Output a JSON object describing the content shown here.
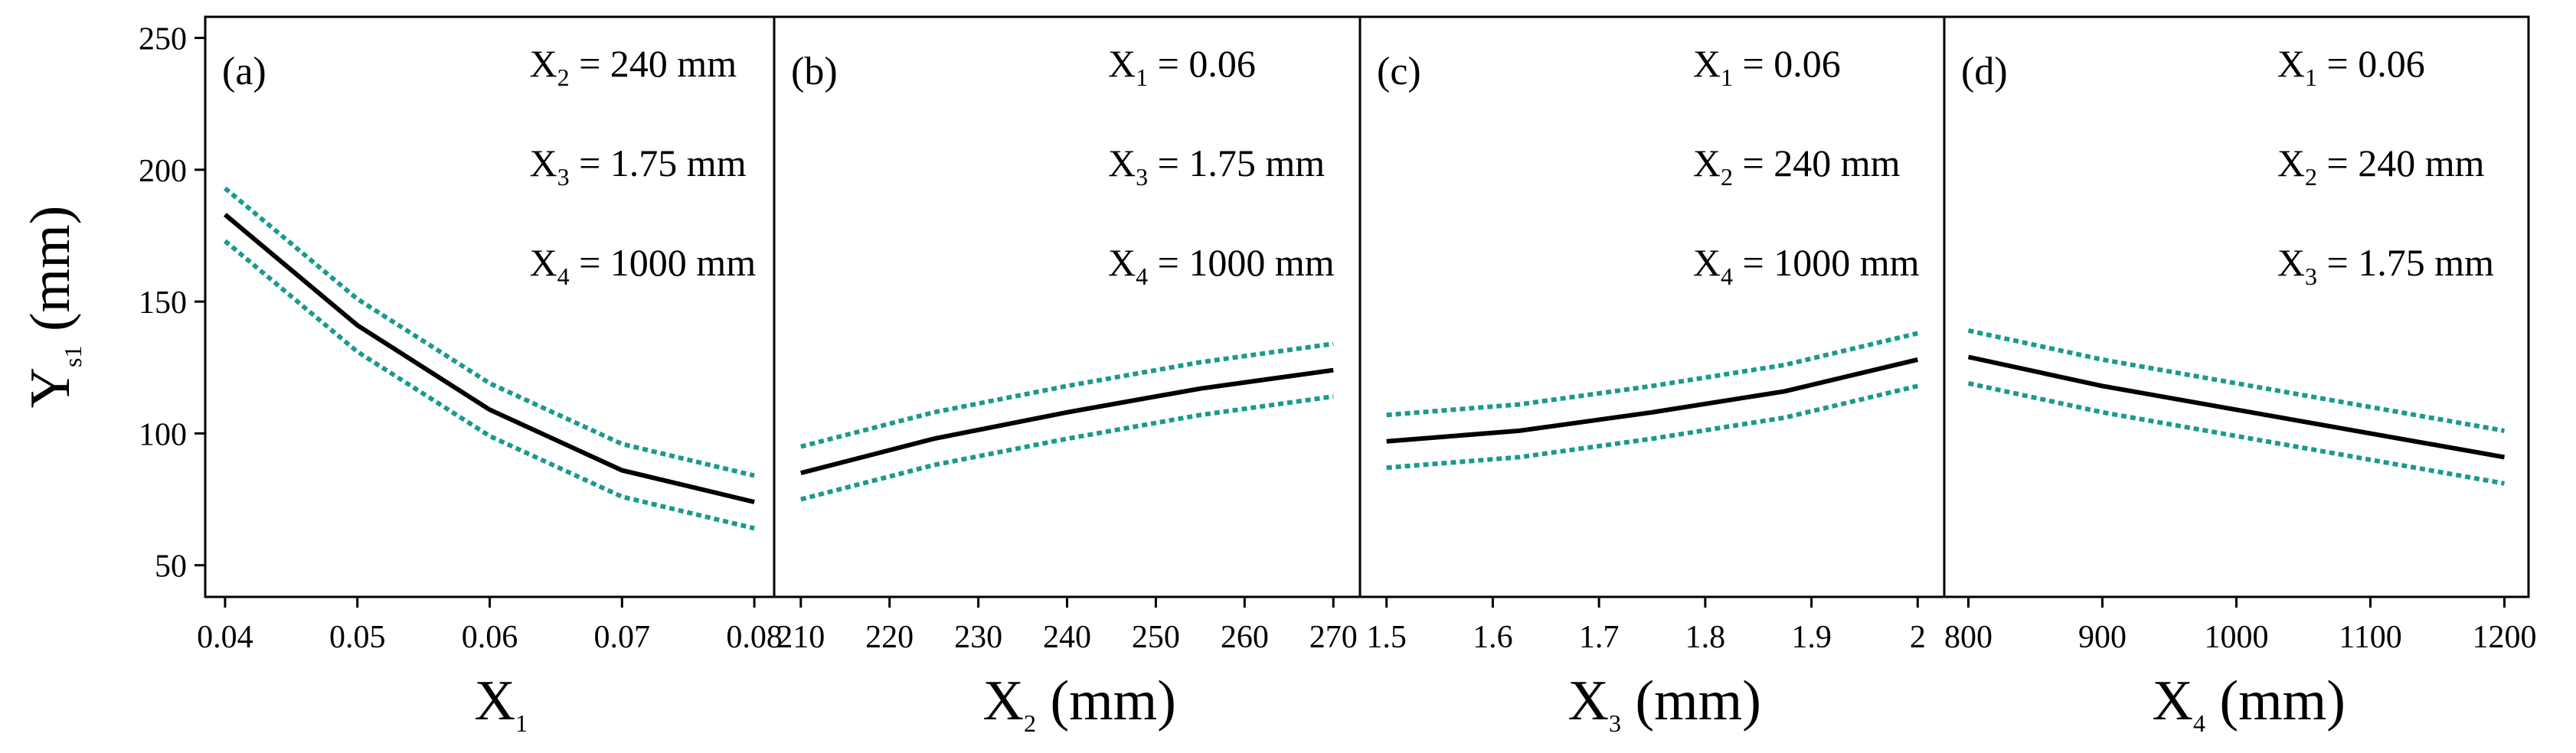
{
  "chart_data": [
    {
      "type": "line",
      "panel": "(a)",
      "xlabel": "X1",
      "x_var": "X",
      "x_sub": "1",
      "x_unit": "",
      "ylabel": "Ys1 (mm)",
      "y_var": "Y",
      "y_sub": "s1",
      "y_unit": " (mm)",
      "xlim": [
        0.0385,
        0.0815
      ],
      "ylim": [
        38,
        258
      ],
      "xticks": [
        0.04,
        0.05,
        0.06,
        0.07,
        0.08
      ],
      "xtick_labels": [
        "0.04",
        "0.05",
        "0.06",
        "0.07",
        "0.08"
      ],
      "yticks": [
        50,
        100,
        150,
        200,
        250
      ],
      "ytick_labels": [
        "50",
        "100",
        "150",
        "200",
        "250"
      ],
      "fixed": [
        {
          "var": "X",
          "sub": "2",
          "text": " = 240 mm"
        },
        {
          "var": "X",
          "sub": "3",
          "text": " = 1.75 mm"
        },
        {
          "var": "X",
          "sub": "4",
          "text": " = 1000 mm"
        }
      ],
      "series": [
        {
          "name": "lower",
          "style": "dotted",
          "x": [
            0.04,
            0.05,
            0.06,
            0.07,
            0.08
          ],
          "y": [
            173,
            131,
            99,
            76,
            64
          ]
        },
        {
          "name": "mean",
          "style": "solid",
          "x": [
            0.04,
            0.05,
            0.06,
            0.07,
            0.08
          ],
          "y": [
            183,
            141,
            109,
            86,
            74
          ]
        },
        {
          "name": "upper",
          "style": "dotted",
          "x": [
            0.04,
            0.05,
            0.06,
            0.07,
            0.08
          ],
          "y": [
            193,
            151,
            119,
            96,
            84
          ]
        }
      ]
    },
    {
      "type": "line",
      "panel": "(b)",
      "xlabel": "X2 (mm)",
      "x_var": "X",
      "x_sub": "2",
      "x_unit": " (mm)",
      "xlim": [
        207,
        273
      ],
      "ylim": [
        38,
        258
      ],
      "xticks": [
        210,
        220,
        230,
        240,
        250,
        260,
        270
      ],
      "xtick_labels": [
        "210",
        "220",
        "230",
        "240",
        "250",
        "260",
        "270"
      ],
      "fixed": [
        {
          "var": "X",
          "sub": "1",
          "text": " = 0.06"
        },
        {
          "var": "X",
          "sub": "3",
          "text": " = 1.75 mm"
        },
        {
          "var": "X",
          "sub": "4",
          "text": " = 1000 mm"
        }
      ],
      "series": [
        {
          "name": "lower",
          "style": "dotted",
          "x": [
            210,
            225,
            240,
            255,
            270
          ],
          "y": [
            75,
            88,
            98,
            107,
            114
          ]
        },
        {
          "name": "mean",
          "style": "solid",
          "x": [
            210,
            225,
            240,
            255,
            270
          ],
          "y": [
            85,
            98,
            108,
            117,
            124
          ]
        },
        {
          "name": "upper",
          "style": "dotted",
          "x": [
            210,
            225,
            240,
            255,
            270
          ],
          "y": [
            95,
            108,
            118,
            127,
            134
          ]
        }
      ]
    },
    {
      "type": "line",
      "panel": "(c)",
      "xlabel": "X3 (mm)",
      "x_var": "X",
      "x_sub": "3",
      "x_unit": " (mm)",
      "xlim": [
        1.475,
        2.025
      ],
      "ylim": [
        38,
        258
      ],
      "xticks": [
        1.5,
        1.6,
        1.7,
        1.8,
        1.9,
        2.0
      ],
      "xtick_labels": [
        "1.5",
        "1.6",
        "1.7",
        "1.8",
        "1.9",
        "2"
      ],
      "fixed": [
        {
          "var": "X",
          "sub": "1",
          "text": " = 0.06"
        },
        {
          "var": "X",
          "sub": "2",
          "text": " = 240 mm"
        },
        {
          "var": "X",
          "sub": "4",
          "text": " = 1000 mm"
        }
      ],
      "series": [
        {
          "name": "lower",
          "style": "dotted",
          "x": [
            1.5,
            1.625,
            1.75,
            1.875,
            2.0
          ],
          "y": [
            87,
            91,
            98,
            106,
            118
          ]
        },
        {
          "name": "mean",
          "style": "solid",
          "x": [
            1.5,
            1.625,
            1.75,
            1.875,
            2.0
          ],
          "y": [
            97,
            101,
            108,
            116,
            128
          ]
        },
        {
          "name": "upper",
          "style": "dotted",
          "x": [
            1.5,
            1.625,
            1.75,
            1.875,
            2.0
          ],
          "y": [
            107,
            111,
            118,
            126,
            138
          ]
        }
      ]
    },
    {
      "type": "line",
      "panel": "(d)",
      "xlabel": "X4 (mm)",
      "x_var": "X",
      "x_sub": "4",
      "x_unit": " (mm)",
      "xlim": [
        782,
        1218
      ],
      "ylim": [
        38,
        258
      ],
      "xticks": [
        800,
        900,
        1000,
        1100,
        1200
      ],
      "xtick_labels": [
        "800",
        "900",
        "1000",
        "1100",
        "1200"
      ],
      "fixed": [
        {
          "var": "X",
          "sub": "1",
          "text": " = 0.06"
        },
        {
          "var": "X",
          "sub": "2",
          "text": " = 240 mm"
        },
        {
          "var": "X",
          "sub": "3",
          "text": " = 1.75 mm"
        }
      ],
      "series": [
        {
          "name": "lower",
          "style": "dotted",
          "x": [
            800,
            900,
            1000,
            1100,
            1200
          ],
          "y": [
            119,
            108,
            99,
            90,
            81
          ]
        },
        {
          "name": "mean",
          "style": "solid",
          "x": [
            800,
            900,
            1000,
            1100,
            1200
          ],
          "y": [
            129,
            118,
            109,
            100,
            91
          ]
        },
        {
          "name": "upper",
          "style": "dotted",
          "x": [
            800,
            900,
            1000,
            1100,
            1200
          ],
          "y": [
            139,
            128,
            119,
            110,
            101
          ]
        }
      ]
    }
  ],
  "colors": {
    "mean": "#000000",
    "ci": "#1a9a8f",
    "frame": "#000000",
    "background": "#ffffff"
  }
}
